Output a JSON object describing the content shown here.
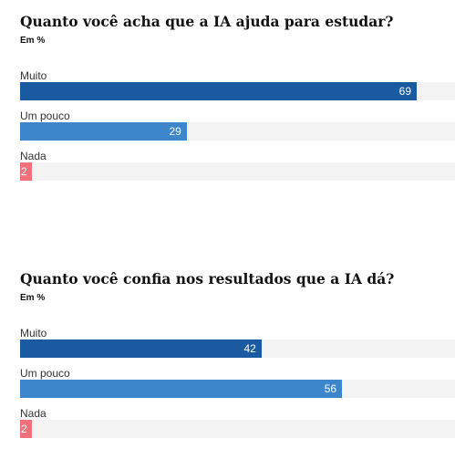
{
  "chart_data": [
    {
      "type": "bar",
      "title": "Quanto você acha que a IA ajuda para estudar?",
      "subtitle": "Em %",
      "categories": [
        "Muito",
        "Um pouco",
        "Nada"
      ],
      "values": [
        69,
        29,
        2
      ],
      "colors": [
        "#1a5aa0",
        "#3d86cc",
        "#f0707c"
      ],
      "track_color": "#f3f3f3",
      "xlim": [
        0,
        100
      ],
      "orientation": "horizontal",
      "grid": false,
      "legend": "none"
    },
    {
      "type": "bar",
      "title": "Quanto você confia nos resultados que a IA dá?",
      "subtitle": "Em %",
      "categories": [
        "Muito",
        "Um pouco",
        "Nada"
      ],
      "values": [
        42,
        56,
        2
      ],
      "colors": [
        "#1a5aa0",
        "#3d86cc",
        "#f0707c"
      ],
      "track_color": "#f3f3f3",
      "xlim": [
        0,
        100
      ],
      "orientation": "horizontal",
      "grid": false,
      "legend": "none"
    }
  ]
}
